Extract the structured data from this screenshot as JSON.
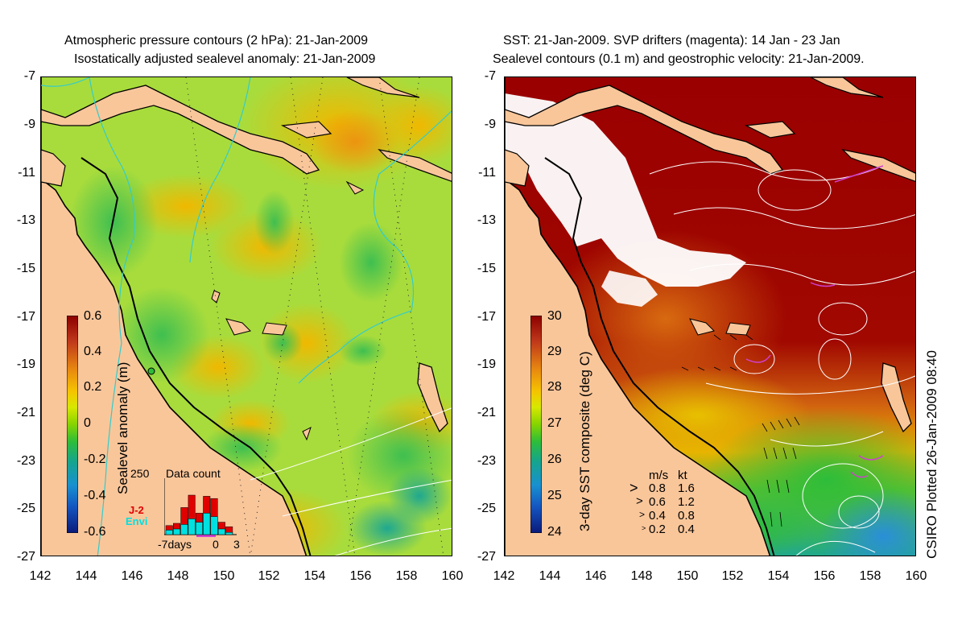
{
  "left_panel": {
    "title_line1": "Atmospheric pressure contours (2 hPa): 21-Jan-2009",
    "title_line2": "Isostatically adjusted sealevel anomaly: 21-Jan-2009",
    "colorbar": {
      "label": "Sealevel anomaly (m)",
      "ticks": [
        "0.6",
        "0.4",
        "0.2",
        "0",
        "-0.2",
        "-0.4",
        "-0.6"
      ],
      "colors": [
        "#8b0000",
        "#c0391b",
        "#e88a10",
        "#f5c400",
        "#d8e800",
        "#86d400",
        "#2dbd3a",
        "#16a58c",
        "#1990d0",
        "#1455c0",
        "#0a1a7a"
      ]
    },
    "data_count": {
      "title": "Data count",
      "ymax_label": "250",
      "x_start": "-7days",
      "x_zero": "0",
      "x_end": "3",
      "missions": [
        {
          "name": "J-2",
          "color": "#e00000"
        },
        {
          "name": "Envi",
          "color": "#00e0e0"
        }
      ],
      "bars": [
        {
          "day": -7,
          "j2": 40,
          "envi": 20
        },
        {
          "day": -6,
          "j2": 50,
          "envi": 25
        },
        {
          "day": -5,
          "j2": 120,
          "envi": 45
        },
        {
          "day": -4,
          "j2": 175,
          "envi": 70
        },
        {
          "day": -3,
          "j2": 95,
          "envi": 55
        },
        {
          "day": -2,
          "j2": 170,
          "envi": 95
        },
        {
          "day": -1,
          "j2": 160,
          "envi": 80
        },
        {
          "day": 0,
          "j2": 55,
          "envi": 25
        },
        {
          "day": 1,
          "j2": 35,
          "envi": 10
        }
      ]
    }
  },
  "right_panel": {
    "title_line1": "SST: 21-Jan-2009. SVP drifters (magenta): 14 Jan - 23 Jan",
    "title_line2": "Sealevel contours (0.1 m) and geostrophic velocity: 21-Jan-2009.",
    "colorbar": {
      "label": "3-day SST composite (deg C)",
      "ticks": [
        "30",
        "29",
        "28",
        "27",
        "26",
        "25",
        "24"
      ],
      "colors": [
        "#8b0000",
        "#c0391b",
        "#e88a10",
        "#f5c400",
        "#d8e800",
        "#86d400",
        "#2dbd3a",
        "#16a58c",
        "#1990d0",
        "#1455c0",
        "#0a1a7a"
      ]
    },
    "velocity_legend": {
      "header_ms": "m/s",
      "header_kt": "kt",
      "rows": [
        {
          "ms": "0.8",
          "kt": "1.6"
        },
        {
          "ms": "0.6",
          "kt": "1.2"
        },
        {
          "ms": "0.4",
          "kt": "0.8"
        },
        {
          "ms": "0.2",
          "kt": "0.4"
        }
      ]
    },
    "credit": "CSIRO Plotted 26-Jan-2009 08:40"
  },
  "axes": {
    "lat_ticks": [
      "-7",
      "-9",
      "-11",
      "-13",
      "-15",
      "-17",
      "-19",
      "-21",
      "-23",
      "-25",
      "-27"
    ],
    "lon_ticks": [
      "142",
      "144",
      "146",
      "148",
      "150",
      "152",
      "154",
      "156",
      "158",
      "160"
    ],
    "lat_range": [
      -27,
      -7
    ],
    "lon_range": [
      142,
      160
    ]
  },
  "colors": {
    "land": "#f9c69a",
    "sst_warm": "#9a0000",
    "cloud": "#ffffff",
    "coastline": "#000000",
    "pressure_contour": "#33cccc",
    "drifter": "#d040d0"
  }
}
